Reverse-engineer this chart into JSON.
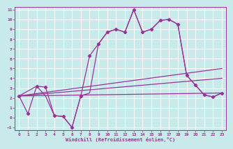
{
  "xlabel": "Windchill (Refroidissement éolien,°C)",
  "background_color": "#c8eaea",
  "grid_color": "#ffffff",
  "line_color": "#993399",
  "xlim": [
    -0.5,
    23.5
  ],
  "ylim": [
    -1.3,
    11.3
  ],
  "xticks": [
    0,
    1,
    2,
    3,
    4,
    5,
    6,
    7,
    8,
    9,
    10,
    11,
    12,
    13,
    14,
    15,
    16,
    17,
    18,
    19,
    20,
    21,
    22,
    23
  ],
  "yticks": [
    -1,
    0,
    1,
    2,
    3,
    4,
    5,
    6,
    7,
    8,
    9,
    10,
    11
  ],
  "series1_x": [
    0,
    1,
    2,
    3,
    4,
    5,
    6,
    7,
    8,
    9,
    10,
    11,
    12,
    13,
    14,
    15,
    16,
    17,
    18,
    19,
    20,
    21,
    22,
    23
  ],
  "series1_y": [
    2.2,
    0.4,
    3.2,
    3.1,
    0.2,
    0.1,
    -1.0,
    2.2,
    6.3,
    7.5,
    8.7,
    9.0,
    8.7,
    11.0,
    8.7,
    9.0,
    9.9,
    10.0,
    9.5,
    4.3,
    3.3,
    2.3,
    2.1,
    2.5
  ],
  "series2_x": [
    0,
    2,
    3,
    4,
    5,
    6,
    7,
    8,
    9,
    10,
    11,
    12,
    13,
    14,
    15,
    16,
    17,
    18,
    19,
    20,
    21,
    22,
    23
  ],
  "series2_y": [
    2.2,
    3.2,
    2.2,
    0.2,
    0.1,
    -1.0,
    2.2,
    2.5,
    7.5,
    8.7,
    9.0,
    8.7,
    11.0,
    8.7,
    9.0,
    9.9,
    10.0,
    9.5,
    4.3,
    3.3,
    2.3,
    2.1,
    2.5
  ],
  "trend1_x": [
    0,
    23
  ],
  "trend1_y": [
    2.2,
    5.0
  ],
  "trend2_x": [
    0,
    23
  ],
  "trend2_y": [
    2.2,
    4.0
  ],
  "trend3_x": [
    0,
    23
  ],
  "trend3_y": [
    2.2,
    2.5
  ]
}
